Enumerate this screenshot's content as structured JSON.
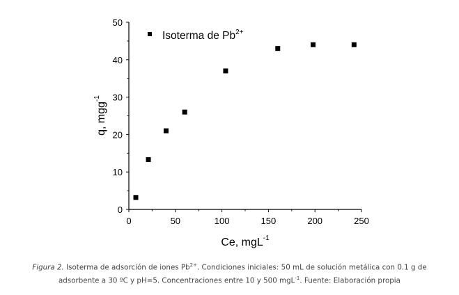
{
  "chart_data": {
    "type": "scatter",
    "xlabel": "Ce, mgL",
    "xlabel_sup": "-1",
    "ylabel": "q, mgg",
    "ylabel_sup": "-1",
    "xlim": [
      0,
      250
    ],
    "ylim": [
      0,
      50
    ],
    "xticks": [
      0,
      50,
      100,
      150,
      200,
      250
    ],
    "yticks": [
      0,
      10,
      20,
      30,
      40,
      50
    ],
    "grid": false,
    "legend_position": "top-left",
    "series": [
      {
        "name": "Isoterma de Pb",
        "name_sup": "2+",
        "marker": "square",
        "color": "#000000",
        "x": [
          7.5,
          21,
          40,
          60,
          104,
          160,
          198,
          242
        ],
        "y": [
          3.2,
          13.3,
          21,
          26,
          37,
          43,
          44,
          44
        ]
      }
    ]
  },
  "caption": {
    "label": "Figura 2.",
    "line1_a": " Isoterma de adsorción de iones Pb",
    "line1_sup": "2+",
    "line1_b": ". Condiciones iniciales: 50 mL de solución metálica con 0.1 g de",
    "line2_a": "adsorbente a 30 ºC y pH=5. Concentraciones entre 10 y 500 mgL",
    "line2_sup": "-1",
    "line2_b": ". Fuente: Elaboración propia"
  }
}
